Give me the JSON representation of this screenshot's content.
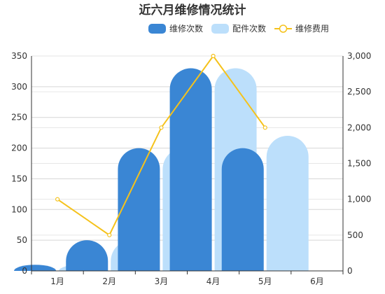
{
  "chart_data": {
    "type": "bar",
    "title": "近六月维修情况统计",
    "categories": [
      "1月",
      "2月",
      "3月",
      "4月",
      "5月",
      "6月"
    ],
    "series": [
      {
        "name": "维修次数",
        "type": "bar",
        "axis": "left",
        "color": "#3a86d4",
        "values": [
          10,
          50,
          200,
          330,
          200,
          0
        ]
      },
      {
        "name": "配件次数",
        "type": "bar",
        "axis": "left",
        "color": "#bcdffb",
        "values": [
          10,
          50,
          200,
          330,
          220,
          0
        ]
      },
      {
        "name": "维修费用",
        "type": "line",
        "axis": "right",
        "color": "#f5c21b",
        "values": [
          1000,
          500,
          2000,
          3000,
          2000,
          null
        ]
      }
    ],
    "y_left": {
      "min": 0,
      "max": 350,
      "step": 50,
      "tick_labels": [
        "0",
        "50",
        "100",
        "150",
        "200",
        "250",
        "300",
        "350"
      ]
    },
    "y_right": {
      "min": 0,
      "max": 3000,
      "step": 500,
      "tick_labels": [
        "0",
        "500",
        "1,000",
        "1,500",
        "2,000",
        "2,500",
        "3,000"
      ]
    },
    "grid": true,
    "legend_position": "top-right"
  }
}
